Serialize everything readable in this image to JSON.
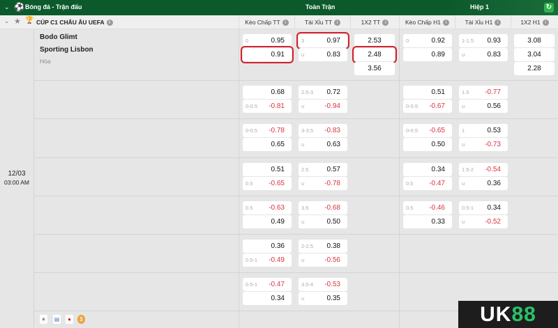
{
  "topbar": {
    "title": "Bóng đá - Trận đấu",
    "full_match": "Toàn Trận",
    "first_half": "Hiệp 1",
    "refresh_icon": "refresh-icon"
  },
  "league": {
    "name": "CÚP C1 CHÂU ÂU UEFA"
  },
  "columns": [
    "Kèo Chấp TT",
    "Tài Xỉu TT",
    "1X2 TT",
    "Kèo Chấp H1",
    "Tài Xỉu H1",
    "1X2 H1"
  ],
  "match": {
    "date": "12/03",
    "time": "03:00 AM",
    "home": "Bodo Glimt",
    "away": "Sporting Lisbon",
    "draw": "Hòa"
  },
  "main_row": {
    "kc_tt": [
      [
        "0",
        "0.95"
      ],
      [
        "",
        "0.91"
      ]
    ],
    "tx_tt": [
      [
        "3",
        "0.97"
      ],
      [
        "u",
        "0.83"
      ]
    ],
    "x12_tt": [
      "2.53",
      "2.48",
      "3.56"
    ],
    "kc_h1": [
      [
        "0",
        "0.92"
      ],
      [
        "",
        "0.89"
      ]
    ],
    "tx_h1": [
      [
        "1-1.5",
        "0.93"
      ],
      [
        "u",
        "0.83"
      ]
    ],
    "x12_h1": [
      "3.08",
      "3.04",
      "2.28"
    ]
  },
  "rows": [
    {
      "kc_tt": [
        [
          "",
          "0.68"
        ],
        [
          "0-0.5",
          "-0.81"
        ]
      ],
      "tx_tt": [
        [
          "2.5-3",
          "0.72"
        ],
        [
          "u",
          "-0.94"
        ]
      ],
      "kc_h1": [
        [
          "",
          "0.51"
        ],
        [
          "0-0.5",
          "-0.67"
        ]
      ],
      "tx_h1": [
        [
          "1.5",
          "-0.77"
        ],
        [
          "u",
          "0.56"
        ]
      ]
    },
    {
      "kc_tt": [
        [
          "0-0.5",
          "-0.78"
        ],
        [
          "",
          "0.65"
        ]
      ],
      "tx_tt": [
        [
          "3-3.5",
          "-0.83"
        ],
        [
          "u",
          "0.63"
        ]
      ],
      "kc_h1": [
        [
          "0-0.5",
          "-0.65"
        ],
        [
          "",
          "0.50"
        ]
      ],
      "tx_h1": [
        [
          "1",
          "0.53"
        ],
        [
          "u",
          "-0.73"
        ]
      ]
    },
    {
      "kc_tt": [
        [
          "",
          "0.51"
        ],
        [
          "0.5",
          "-0.65"
        ]
      ],
      "tx_tt": [
        [
          "2.5",
          "0.57"
        ],
        [
          "u",
          "-0.78"
        ]
      ],
      "kc_h1": [
        [
          "",
          "0.34"
        ],
        [
          "0.5",
          "-0.47"
        ]
      ],
      "tx_h1": [
        [
          "1.5-2",
          "-0.54"
        ],
        [
          "u",
          "0.36"
        ]
      ]
    },
    {
      "kc_tt": [
        [
          "0.5",
          "-0.63"
        ],
        [
          "",
          "0.49"
        ]
      ],
      "tx_tt": [
        [
          "3.5",
          "-0.68"
        ],
        [
          "u",
          "0.50"
        ]
      ],
      "kc_h1": [
        [
          "0.5",
          "-0.46"
        ],
        [
          "",
          "0.33"
        ]
      ],
      "tx_h1": [
        [
          "0.5-1",
          "0.34"
        ],
        [
          "u",
          "-0.52"
        ]
      ]
    },
    {
      "kc_tt": [
        [
          "",
          "0.36"
        ],
        [
          "0.5-1",
          "-0.49"
        ]
      ],
      "tx_tt": [
        [
          "2-2.5",
          "0.38"
        ],
        [
          "u",
          "-0.56"
        ]
      ]
    },
    {
      "kc_tt": [
        [
          "0.5-1",
          "-0.47"
        ],
        [
          "",
          "0.34"
        ]
      ],
      "tx_tt": [
        [
          "3.5-4",
          "-0.53"
        ],
        [
          "u",
          "0.35"
        ]
      ]
    }
  ],
  "selected": {
    "color": "#d4202b"
  },
  "brand": {
    "logo": "UK88"
  }
}
